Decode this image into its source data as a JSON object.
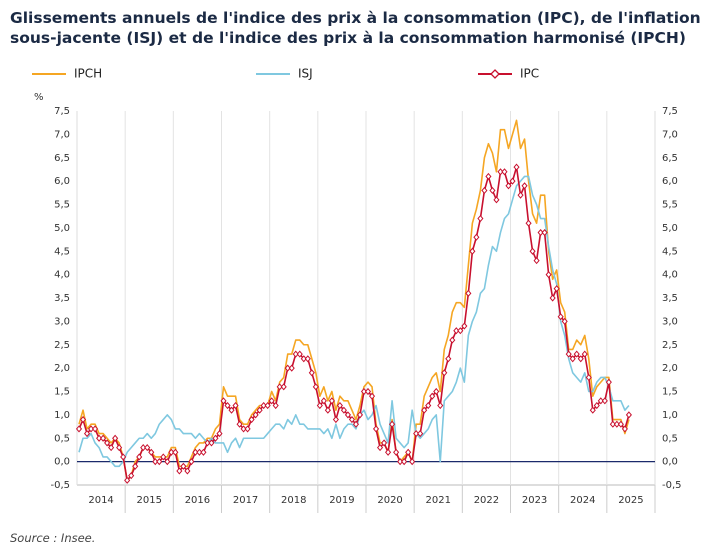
{
  "chart_data": {
    "type": "line",
    "title": "Glissements annuels de l'indice des prix à la consommation (IPC), de l'inflation sous-jacente (ISJ) et de l'indice des prix à la consommation harmonisé (IPCH)",
    "ylabel": "%",
    "source": "Source : Insee.",
    "categories": [
      "2014",
      null,
      null,
      null,
      null,
      null,
      null,
      null,
      null,
      null,
      null,
      null,
      "2015",
      null,
      null,
      null,
      null,
      null,
      null,
      null,
      null,
      null,
      null,
      null,
      "2016",
      null,
      null,
      null,
      null,
      null,
      null,
      null,
      null,
      null,
      null,
      null,
      "2017",
      null,
      null,
      null,
      null,
      null,
      null,
      null,
      null,
      null,
      null,
      null,
      "2018",
      null,
      null,
      null,
      null,
      null,
      null,
      null,
      null,
      null,
      null,
      null,
      "2019",
      null,
      null,
      null,
      null,
      null,
      null,
      null,
      null,
      null,
      null,
      null,
      "2020",
      null,
      null,
      null,
      null,
      null,
      null,
      null,
      null,
      null,
      null,
      null,
      "2021",
      null,
      null,
      null,
      null,
      null,
      null,
      null,
      null,
      null,
      null,
      null,
      "2022",
      null,
      null,
      null,
      null,
      null,
      null,
      null,
      null,
      null,
      null,
      null,
      "2023",
      null,
      null,
      null,
      null,
      null,
      null,
      null,
      null,
      null,
      null,
      null,
      "2024",
      null,
      null,
      null,
      null,
      null,
      null,
      null,
      null,
      null,
      null,
      null,
      "2025",
      null,
      null,
      null,
      null,
      null,
      null,
      null,
      null,
      null,
      null,
      null
    ],
    "series": [
      {
        "name": "IPCH",
        "color": "#f5a623",
        "values": [
          0.8,
          1.1,
          0.7,
          0.8,
          0.8,
          0.6,
          0.6,
          0.5,
          0.4,
          0.5,
          0.4,
          0.1,
          -0.4,
          -0.3,
          0.0,
          0.1,
          0.3,
          0.3,
          0.2,
          0.1,
          0.1,
          0.1,
          0.1,
          0.3,
          0.3,
          -0.1,
          -0.1,
          -0.1,
          0.1,
          0.3,
          0.4,
          0.4,
          0.5,
          0.5,
          0.7,
          0.8,
          1.6,
          1.4,
          1.4,
          1.4,
          0.9,
          0.8,
          0.8,
          1.0,
          1.1,
          1.2,
          1.2,
          1.2,
          1.5,
          1.3,
          1.7,
          1.8,
          2.3,
          2.3,
          2.6,
          2.6,
          2.5,
          2.5,
          2.2,
          1.9,
          1.4,
          1.6,
          1.3,
          1.5,
          1.1,
          1.4,
          1.3,
          1.3,
          1.1,
          0.9,
          1.2,
          1.6,
          1.7,
          1.6,
          0.8,
          0.4,
          0.4,
          0.2,
          0.9,
          0.2,
          0.0,
          0.1,
          0.2,
          0.0,
          0.8,
          0.8,
          1.4,
          1.6,
          1.8,
          1.9,
          1.5,
          2.4,
          2.7,
          3.2,
          3.4,
          3.4,
          3.3,
          4.2,
          5.1,
          5.4,
          5.8,
          6.5,
          6.8,
          6.6,
          6.2,
          7.1,
          7.1,
          6.7,
          7.0,
          7.3,
          6.7,
          6.9,
          6.0,
          5.3,
          5.1,
          5.7,
          5.7,
          4.5,
          3.9,
          4.1,
          3.4,
          3.2,
          2.4,
          2.4,
          2.6,
          2.5,
          2.7,
          2.2,
          1.4,
          1.6,
          1.7,
          1.8,
          1.8,
          0.9,
          0.9,
          0.9,
          0.6,
          0.9,
          null,
          null,
          null,
          null,
          null,
          null
        ]
      },
      {
        "name": "ISJ",
        "color": "#7fc8e0",
        "values": [
          0.2,
          0.5,
          0.5,
          0.6,
          0.4,
          0.3,
          0.1,
          0.1,
          0.0,
          -0.1,
          -0.1,
          0.0,
          0.2,
          0.3,
          0.4,
          0.5,
          0.5,
          0.6,
          0.5,
          0.6,
          0.8,
          0.9,
          1.0,
          0.9,
          0.7,
          0.7,
          0.6,
          0.6,
          0.6,
          0.5,
          0.6,
          0.5,
          0.4,
          0.5,
          0.4,
          0.4,
          0.4,
          0.2,
          0.4,
          0.5,
          0.3,
          0.5,
          0.5,
          0.5,
          0.5,
          0.5,
          0.5,
          0.6,
          0.7,
          0.8,
          0.8,
          0.7,
          0.9,
          0.8,
          1.0,
          0.8,
          0.8,
          0.7,
          0.7,
          0.7,
          0.7,
          0.6,
          0.7,
          0.5,
          0.8,
          0.5,
          0.7,
          0.8,
          0.8,
          0.7,
          1.0,
          1.1,
          0.9,
          1.0,
          1.2,
          0.8,
          0.6,
          0.4,
          1.3,
          0.5,
          0.4,
          0.3,
          0.4,
          1.1,
          0.6,
          0.5,
          0.6,
          0.7,
          0.9,
          1.0,
          0.0,
          1.3,
          1.4,
          1.5,
          1.7,
          2.0,
          1.7,
          2.7,
          3.0,
          3.2,
          3.6,
          3.7,
          4.2,
          4.6,
          4.5,
          4.9,
          5.2,
          5.3,
          5.6,
          5.9,
          6.0,
          6.1,
          6.1,
          5.7,
          5.5,
          5.2,
          5.2,
          4.6,
          4.1,
          3.8,
          3.0,
          2.7,
          2.2,
          1.9,
          1.8,
          1.7,
          1.9,
          1.5,
          1.5,
          1.7,
          1.8,
          1.8,
          1.6,
          1.3,
          1.3,
          1.3,
          1.1,
          1.2,
          null,
          null,
          null,
          null,
          null,
          null
        ]
      },
      {
        "name": "IPC",
        "color": "#c8102e",
        "marker": "diamond",
        "values": [
          0.7,
          0.9,
          0.6,
          0.7,
          0.7,
          0.5,
          0.5,
          0.4,
          0.3,
          0.5,
          0.3,
          0.1,
          -0.4,
          -0.3,
          -0.1,
          0.1,
          0.3,
          0.3,
          0.2,
          0.0,
          0.0,
          0.1,
          0.0,
          0.2,
          0.2,
          -0.2,
          -0.1,
          -0.2,
          0.0,
          0.2,
          0.2,
          0.2,
          0.4,
          0.4,
          0.5,
          0.6,
          1.3,
          1.2,
          1.1,
          1.2,
          0.8,
          0.7,
          0.7,
          0.9,
          1.0,
          1.1,
          1.2,
          1.2,
          1.3,
          1.2,
          1.6,
          1.6,
          2.0,
          2.0,
          2.3,
          2.3,
          2.2,
          2.2,
          1.9,
          1.6,
          1.2,
          1.3,
          1.1,
          1.3,
          0.9,
          1.2,
          1.1,
          1.0,
          0.9,
          0.8,
          1.0,
          1.5,
          1.5,
          1.4,
          0.7,
          0.3,
          0.4,
          0.2,
          0.8,
          0.2,
          0.0,
          0.0,
          0.2,
          0.0,
          0.6,
          0.6,
          1.1,
          1.2,
          1.4,
          1.5,
          1.2,
          1.9,
          2.2,
          2.6,
          2.8,
          2.8,
          2.9,
          3.6,
          4.5,
          4.8,
          5.2,
          5.8,
          6.1,
          5.8,
          5.6,
          6.2,
          6.2,
          5.9,
          6.0,
          6.3,
          5.7,
          5.9,
          5.1,
          4.5,
          4.3,
          4.9,
          4.9,
          4.0,
          3.5,
          3.7,
          3.1,
          3.0,
          2.3,
          2.2,
          2.3,
          2.2,
          2.3,
          1.8,
          1.1,
          1.2,
          1.3,
          1.3,
          1.7,
          0.8,
          0.8,
          0.8,
          0.7,
          1.0,
          null,
          null,
          null,
          null,
          null,
          null
        ]
      }
    ],
    "ylim": [
      -0.5,
      7.5
    ],
    "yticks": [
      {
        "value": -0.5,
        "label": "-0,5"
      },
      {
        "value": 0,
        "label": "0,0"
      },
      {
        "value": 0.5,
        "label": "0,5"
      },
      {
        "value": 1,
        "label": "1,0"
      },
      {
        "value": 1.5,
        "label": "1,5"
      },
      {
        "value": 2,
        "label": "2,0"
      },
      {
        "value": 2.5,
        "label": "2,5"
      },
      {
        "value": 3,
        "label": "3,0"
      },
      {
        "value": 3.5,
        "label": "3,5"
      },
      {
        "value": 4,
        "label": "4,0"
      },
      {
        "value": 4.5,
        "label": "4,5"
      },
      {
        "value": 5,
        "label": "5,0"
      },
      {
        "value": 5.5,
        "label": "5,5"
      },
      {
        "value": 6,
        "label": "6,0"
      },
      {
        "value": 6.5,
        "label": "6,5"
      },
      {
        "value": 7,
        "label": "7,0"
      },
      {
        "value": 7.5,
        "label": "7,5"
      }
    ],
    "zero_line_color": "#1b2a6b"
  }
}
